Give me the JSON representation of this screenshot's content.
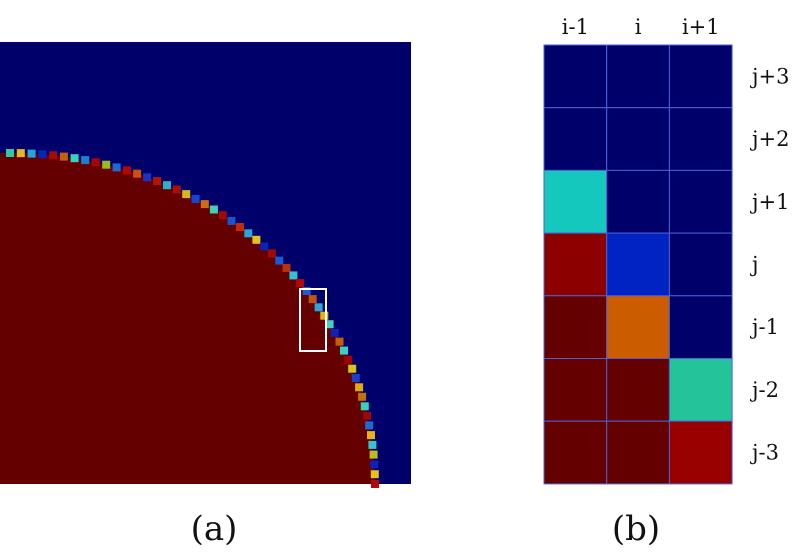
{
  "panel_a": {
    "caption": "(a)",
    "colors": {
      "background": "#00006a",
      "interior": "#650000",
      "selection_box": "#ffffff"
    },
    "interface_cells": [
      {
        "color": "#31c9a4"
      },
      {
        "color": "#e4b728"
      },
      {
        "color": "#21a6d8"
      },
      {
        "color": "#0a24b8"
      },
      {
        "color": "#a80808"
      },
      {
        "color": "#c26010"
      },
      {
        "color": "#38d2c0"
      },
      {
        "color": "#1c7fd4"
      },
      {
        "color": "#a90404"
      },
      {
        "color": "#9aba24"
      },
      {
        "color": "#1f6ad2"
      },
      {
        "color": "#b40606"
      },
      {
        "color": "#d24d0e"
      },
      {
        "color": "#1b31c8"
      },
      {
        "color": "#b41408"
      },
      {
        "color": "#2eb1c8"
      },
      {
        "color": "#a81006"
      },
      {
        "color": "#d6b81e"
      },
      {
        "color": "#1448cc"
      },
      {
        "color": "#d26a12"
      },
      {
        "color": "#42d0b4"
      },
      {
        "color": "#9e0a06"
      },
      {
        "color": "#1a55cf"
      },
      {
        "color": "#c42a0c"
      },
      {
        "color": "#2aa7d6"
      },
      {
        "color": "#e2c21c"
      },
      {
        "color": "#0d22b6"
      },
      {
        "color": "#a30808"
      },
      {
        "color": "#1c58d0"
      },
      {
        "color": "#be300c"
      },
      {
        "color": "#30c4d2"
      },
      {
        "color": "#b20808"
      },
      {
        "color": "#1e5ad2"
      },
      {
        "color": "#c25410"
      },
      {
        "color": "#2ca7d6"
      },
      {
        "color": "#d8b818"
      },
      {
        "color": "#42d2b8"
      },
      {
        "color": "#0d22b6"
      },
      {
        "color": "#c65e10"
      },
      {
        "color": "#38d2c0"
      },
      {
        "color": "#a50000"
      },
      {
        "color": "#d6c418"
      },
      {
        "color": "#1a3fc8"
      },
      {
        "color": "#e0a91a"
      },
      {
        "color": "#c07410"
      },
      {
        "color": "#3cd0b6"
      },
      {
        "color": "#9a0808"
      },
      {
        "color": "#1c6ad2"
      },
      {
        "color": "#e0b418"
      },
      {
        "color": "#38c3c8"
      },
      {
        "color": "#b8be22"
      },
      {
        "color": "#0d22b6"
      },
      {
        "color": "#e6c022"
      },
      {
        "color": "#b40808"
      }
    ]
  },
  "panel_b": {
    "caption": "(b)",
    "columns": [
      "i-1",
      "i",
      "i+1"
    ],
    "rows": [
      "j+3",
      "j+2",
      "j+1",
      "j",
      "j-1",
      "j-2",
      "j-3"
    ],
    "cells": [
      [
        "#00006a",
        "#00006a",
        "#00006a"
      ],
      [
        "#00006a",
        "#00006a",
        "#00006a"
      ],
      [
        "#15c8be",
        "#00006a",
        "#00006a"
      ],
      [
        "#8c0000",
        "#0023c2",
        "#00006a"
      ],
      [
        "#650000",
        "#cc5c00",
        "#00006a"
      ],
      [
        "#650000",
        "#650000",
        "#23c49a"
      ],
      [
        "#650000",
        "#650000",
        "#980000"
      ]
    ],
    "grid_line_color": "#4a62d6"
  }
}
